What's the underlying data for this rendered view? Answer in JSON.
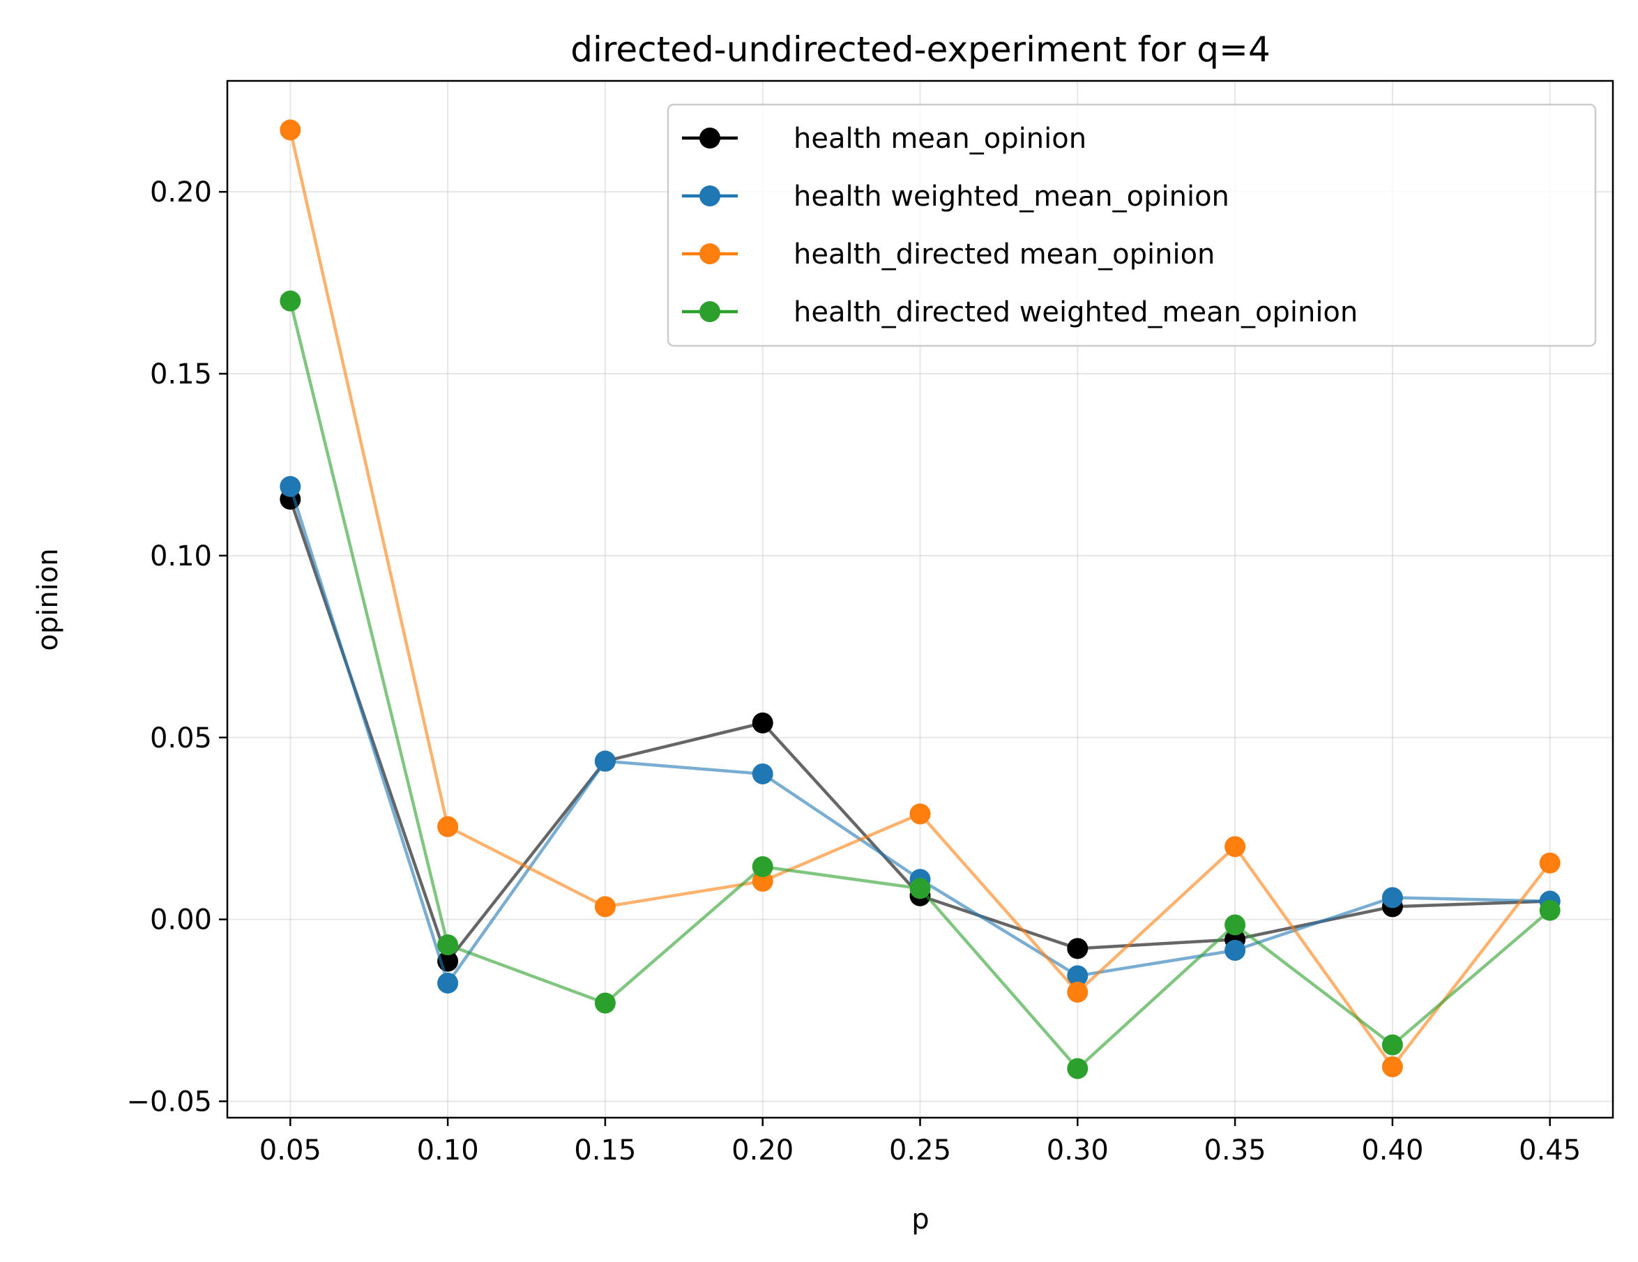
{
  "chart_data": {
    "type": "line",
    "title": "directed-undirected-experiment for q=4",
    "xlabel": "p",
    "ylabel": "opinion",
    "x": [
      0.05,
      0.1,
      0.15,
      0.2,
      0.25,
      0.3,
      0.35,
      0.4,
      0.45
    ],
    "x_tick_labels": [
      "0.05",
      "0.10",
      "0.15",
      "0.20",
      "0.25",
      "0.30",
      "0.35",
      "0.40",
      "0.45"
    ],
    "y_ticks": [
      -0.05,
      0.0,
      0.05,
      0.1,
      0.15,
      0.2
    ],
    "y_tick_labels": [
      "−0.05",
      "0.00",
      "0.05",
      "0.10",
      "0.15",
      "0.20"
    ],
    "xlim": [
      0.03,
      0.47
    ],
    "ylim": [
      -0.0545,
      0.2305
    ],
    "grid": true,
    "legend_position": "top-right",
    "series": [
      {
        "name": "health mean_opinion",
        "color": "#000000",
        "values": [
          0.1155,
          -0.0115,
          0.0435,
          0.054,
          0.0065,
          -0.008,
          -0.0055,
          0.0035,
          0.005
        ]
      },
      {
        "name": "health weighted_mean_opinion",
        "color": "#1f77b4",
        "values": [
          0.119,
          -0.0175,
          0.0435,
          0.04,
          0.011,
          -0.0155,
          -0.0085,
          0.006,
          0.005
        ]
      },
      {
        "name": "health_directed mean_opinion",
        "color": "#ff7f0e",
        "values": [
          0.217,
          0.0255,
          0.0035,
          0.0105,
          0.029,
          -0.02,
          0.02,
          -0.0405,
          0.0155
        ]
      },
      {
        "name": "health_directed weighted_mean_opinion",
        "color": "#2ca02c",
        "values": [
          0.17,
          -0.007,
          -0.023,
          0.0145,
          0.0085,
          -0.041,
          -0.0015,
          -0.0345,
          0.0025
        ]
      }
    ]
  }
}
